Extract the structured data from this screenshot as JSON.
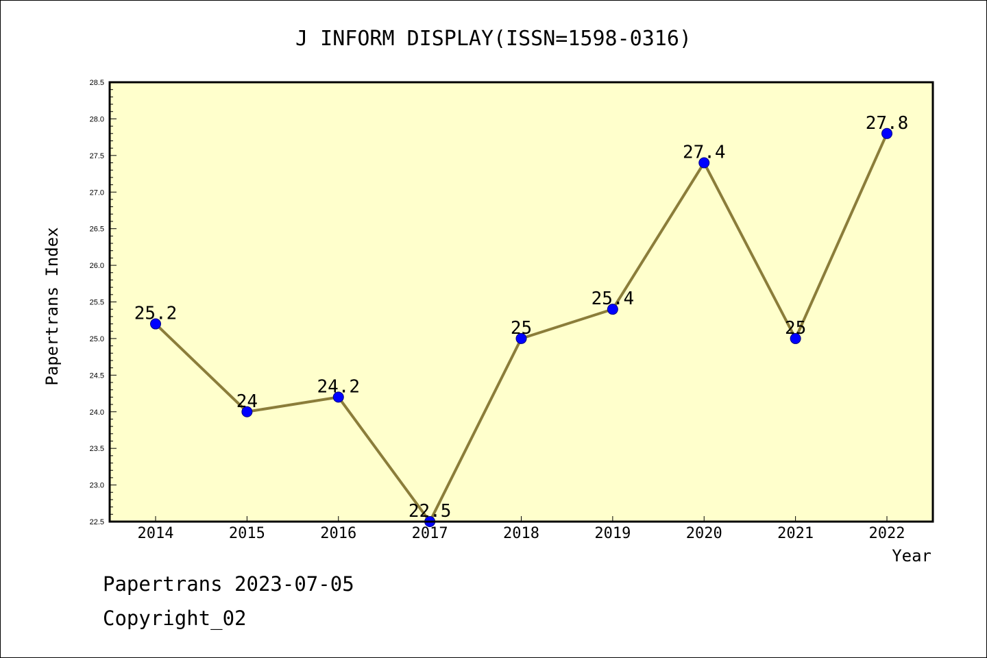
{
  "chart_data": {
    "type": "line",
    "title": "J INFORM DISPLAY(ISSN=1598-0316)",
    "xlabel": "Year",
    "ylabel": "Papertrans Index",
    "categories": [
      "2014",
      "2015",
      "2016",
      "2017",
      "2018",
      "2019",
      "2020",
      "2021",
      "2022"
    ],
    "values": [
      25.2,
      24.0,
      24.2,
      22.5,
      25.0,
      25.4,
      27.4,
      25.0,
      27.8
    ],
    "data_labels": [
      "25.2",
      "24",
      "24.2",
      "22.5",
      "25",
      "25.4",
      "27.4",
      "25",
      "27.8"
    ],
    "ylim": [
      22.5,
      28.5
    ],
    "yticks": [
      "22.5",
      "23.0",
      "23.5",
      "24.0",
      "24.5",
      "25.0",
      "25.5",
      "26.0",
      "26.5",
      "27.0",
      "27.5",
      "28.0",
      "28.5"
    ],
    "grid": false,
    "colors": {
      "plot_background": "#ffffcc",
      "line": "#8b7d3a",
      "marker_fill": "#0000ff",
      "marker_edge": "#000080"
    }
  },
  "footer": {
    "line1": "Papertrans 2023-07-05",
    "line2": "Copyright_02"
  }
}
